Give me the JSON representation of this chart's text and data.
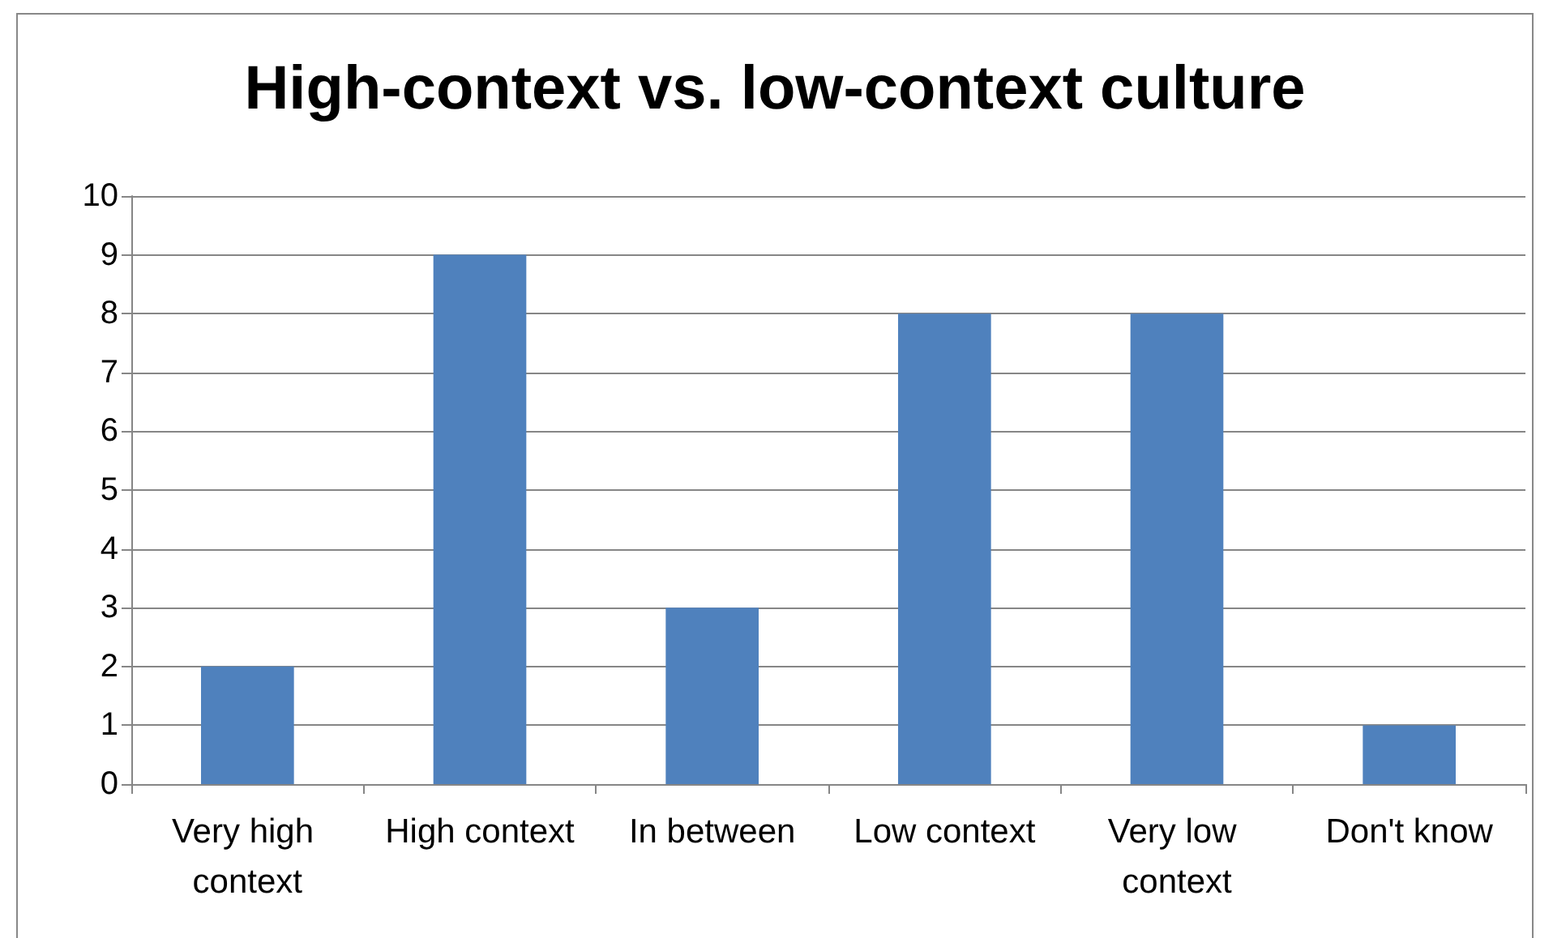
{
  "chart_data": {
    "type": "bar",
    "title": "High-context vs. low-context culture",
    "categories": [
      "Very high context",
      "High context",
      "In between",
      "Low context",
      "Very low context",
      "Don't know"
    ],
    "values": [
      2,
      9,
      3,
      8,
      8,
      1
    ],
    "color": "#4f81bd",
    "ylim": [
      0,
      10
    ],
    "yticks": [
      0,
      1,
      2,
      3,
      4,
      5,
      6,
      7,
      8,
      9,
      10
    ],
    "grid": "y"
  }
}
